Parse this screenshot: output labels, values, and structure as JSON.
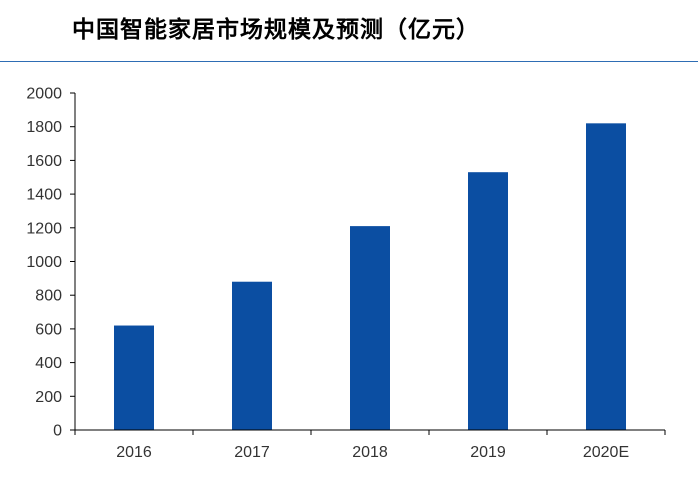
{
  "page": {
    "title": "中国智能家居市场规模及预测（亿元）"
  },
  "colors": {
    "bar": "#0b4ea2",
    "title_rule": "#2e6db4",
    "axis": "#000000",
    "tick_text": "#333333"
  },
  "chart_data": {
    "type": "bar",
    "title": "中国智能家居市场规模及预测（亿元）",
    "categories": [
      "2016",
      "2017",
      "2018",
      "2019",
      "2020E"
    ],
    "values": [
      620,
      880,
      1210,
      1530,
      1820
    ],
    "ylim": [
      0,
      2000
    ],
    "yticks": [
      0,
      200,
      400,
      600,
      800,
      1000,
      1200,
      1400,
      1600,
      1800,
      2000
    ],
    "xlabel": "",
    "ylabel": "",
    "grid": false,
    "legend": "none"
  }
}
